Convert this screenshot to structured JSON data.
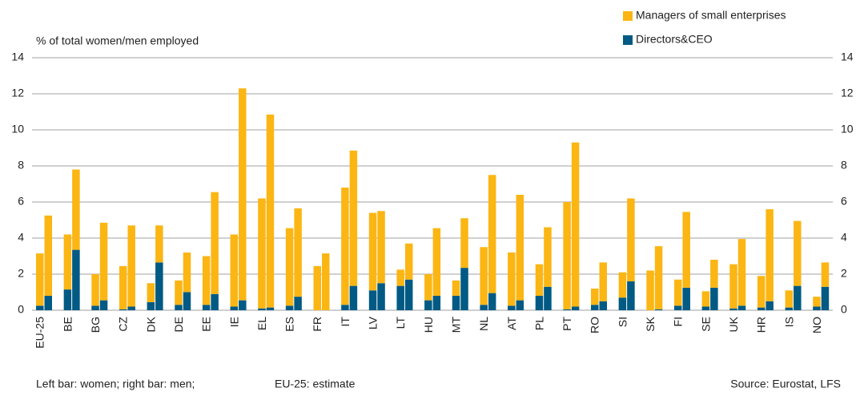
{
  "chart_data": {
    "type": "bar",
    "stacked": true,
    "y_label": "% of total women/men employed",
    "categories": [
      "EU-25",
      "BE",
      "BG",
      "CZ",
      "DK",
      "DE",
      "EE",
      "IE",
      "EL",
      "ES",
      "FR",
      "IT",
      "LV",
      "LT",
      "HU",
      "MT",
      "NL",
      "AT",
      "PL",
      "PT",
      "RO",
      "SI",
      "SK",
      "FI",
      "SE",
      "UK",
      "HR",
      "IS",
      "NO"
    ],
    "series": [
      {
        "name": "Managers of small enterprises",
        "color": "#fbb614",
        "values": [
          [
            2.9,
            4.45
          ],
          [
            3.05,
            4.45
          ],
          [
            1.75,
            4.3
          ],
          [
            2.4,
            4.5
          ],
          [
            1.05,
            2.05
          ],
          [
            1.35,
            2.2
          ],
          [
            2.7,
            5.65
          ],
          [
            4.0,
            11.75
          ],
          [
            6.1,
            10.7
          ],
          [
            4.3,
            4.9
          ],
          [
            2.45,
            3.15
          ],
          [
            6.5,
            7.5
          ],
          [
            4.3,
            4.0
          ],
          [
            0.9,
            2.0
          ],
          [
            1.45,
            3.75
          ],
          [
            0.85,
            2.75
          ],
          [
            3.2,
            6.55
          ],
          [
            2.95,
            5.85
          ],
          [
            1.75,
            3.3
          ],
          [
            5.95,
            9.1
          ],
          [
            0.9,
            2.15
          ],
          [
            1.4,
            4.6
          ],
          [
            2.2,
            3.5
          ],
          [
            1.45,
            4.2
          ],
          [
            0.85,
            1.55
          ],
          [
            2.45,
            3.7
          ],
          [
            1.75,
            5.1
          ],
          [
            0.95,
            3.6
          ],
          [
            0.55,
            1.35
          ]
        ]
      },
      {
        "name": "Directors&CEO",
        "color": "#005a84",
        "values": [
          [
            0.25,
            0.8
          ],
          [
            1.15,
            3.35
          ],
          [
            0.25,
            0.55
          ],
          [
            0.05,
            0.2
          ],
          [
            0.45,
            2.65
          ],
          [
            0.3,
            1.0
          ],
          [
            0.3,
            0.9
          ],
          [
            0.2,
            0.55
          ],
          [
            0.1,
            0.15
          ],
          [
            0.25,
            0.75
          ],
          [
            0,
            0
          ],
          [
            0.3,
            1.35
          ],
          [
            1.1,
            1.5
          ],
          [
            1.35,
            1.7
          ],
          [
            0.55,
            0.8
          ],
          [
            0.8,
            2.35
          ],
          [
            0.3,
            0.95
          ],
          [
            0.25,
            0.55
          ],
          [
            0.8,
            1.3
          ],
          [
            0.05,
            0.2
          ],
          [
            0.3,
            0.5
          ],
          [
            0.7,
            1.6
          ],
          [
            0,
            0.05
          ],
          [
            0.25,
            1.25
          ],
          [
            0.2,
            1.25
          ],
          [
            0.1,
            0.25
          ],
          [
            0.15,
            0.5
          ],
          [
            0.15,
            1.35
          ],
          [
            0.2,
            1.3
          ]
        ]
      }
    ],
    "ylim": [
      0,
      14
    ],
    "yticks": [
      0,
      2,
      4,
      6,
      8,
      10,
      12,
      14
    ],
    "y2lim": [
      0,
      14
    ],
    "y2ticks": [
      0,
      2,
      4,
      6,
      8,
      10,
      12,
      14
    ],
    "grid": true,
    "legend": "top-right",
    "notes": [
      "Left bar: women; right bar: men;",
      "EU-25: estimate"
    ],
    "source": "Source: Eurostat, LFS"
  }
}
